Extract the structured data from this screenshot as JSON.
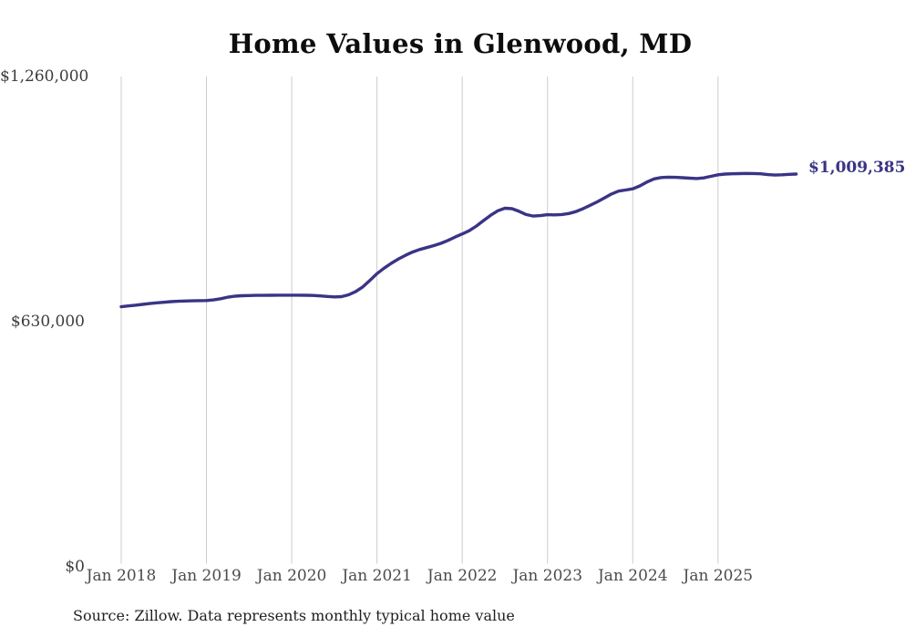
{
  "page": {
    "title": "Home Values in Glenwood, MD",
    "latest_value_label": "$1,009,385",
    "source_note": "Source: Zillow. Data represents monthly typical home value"
  },
  "chart_data": {
    "type": "line",
    "title": "Home Values in Glenwood, MD",
    "xlabel": "",
    "ylabel": "",
    "x_tick_labels": [
      "Jan 2018",
      "Jan 2019",
      "Jan 2020",
      "Jan 2021",
      "Jan 2022",
      "Jan 2023",
      "Jan 2024",
      "Jan 2025"
    ],
    "y_ticks": [
      {
        "label": "$0",
        "value": 0
      },
      {
        "label": "$630,000",
        "value": 630000
      },
      {
        "label": "$1,260,000",
        "value": 1260000
      }
    ],
    "ylim": [
      0,
      1260000
    ],
    "grid": "vertical-only",
    "legend": "none",
    "gridline_color": "#cccccc",
    "line_color": "#3a3486",
    "end_label": "$1,009,385",
    "series": [
      {
        "name": "Monthly typical home value",
        "start": "Jan 2018",
        "cadence": "monthly",
        "values": [
          668500,
          670500,
          672500,
          674500,
          676500,
          678500,
          680000,
          681500,
          682500,
          683200,
          683700,
          684000,
          684300,
          686000,
          689000,
          693000,
          695500,
          696800,
          697300,
          697600,
          697800,
          698000,
          698100,
          698200,
          698200,
          698100,
          698000,
          697500,
          696300,
          694800,
          693600,
          694500,
          699000,
          707500,
          719500,
          736000,
          753500,
          767500,
          780000,
          791000,
          800500,
          809000,
          815500,
          820500,
          825500,
          831500,
          839000,
          847500,
          855500,
          864000,
          876000,
          890000,
          903500,
          915000,
          921500,
          920500,
          913500,
          905500,
          901500,
          902500,
          905000,
          904500,
          905500,
          908000,
          913000,
          920500,
          929000,
          938000,
          948000,
          958000,
          965500,
          968500,
          971500,
          979000,
          989000,
          997000,
          1000500,
          1001500,
          1001000,
          1000000,
          998800,
          998000,
          999500,
          1003500,
          1007500,
          1009300,
          1010200,
          1010600,
          1011000,
          1010800,
          1010000,
          1008000,
          1006900,
          1007500,
          1008800,
          1009385
        ]
      }
    ]
  }
}
